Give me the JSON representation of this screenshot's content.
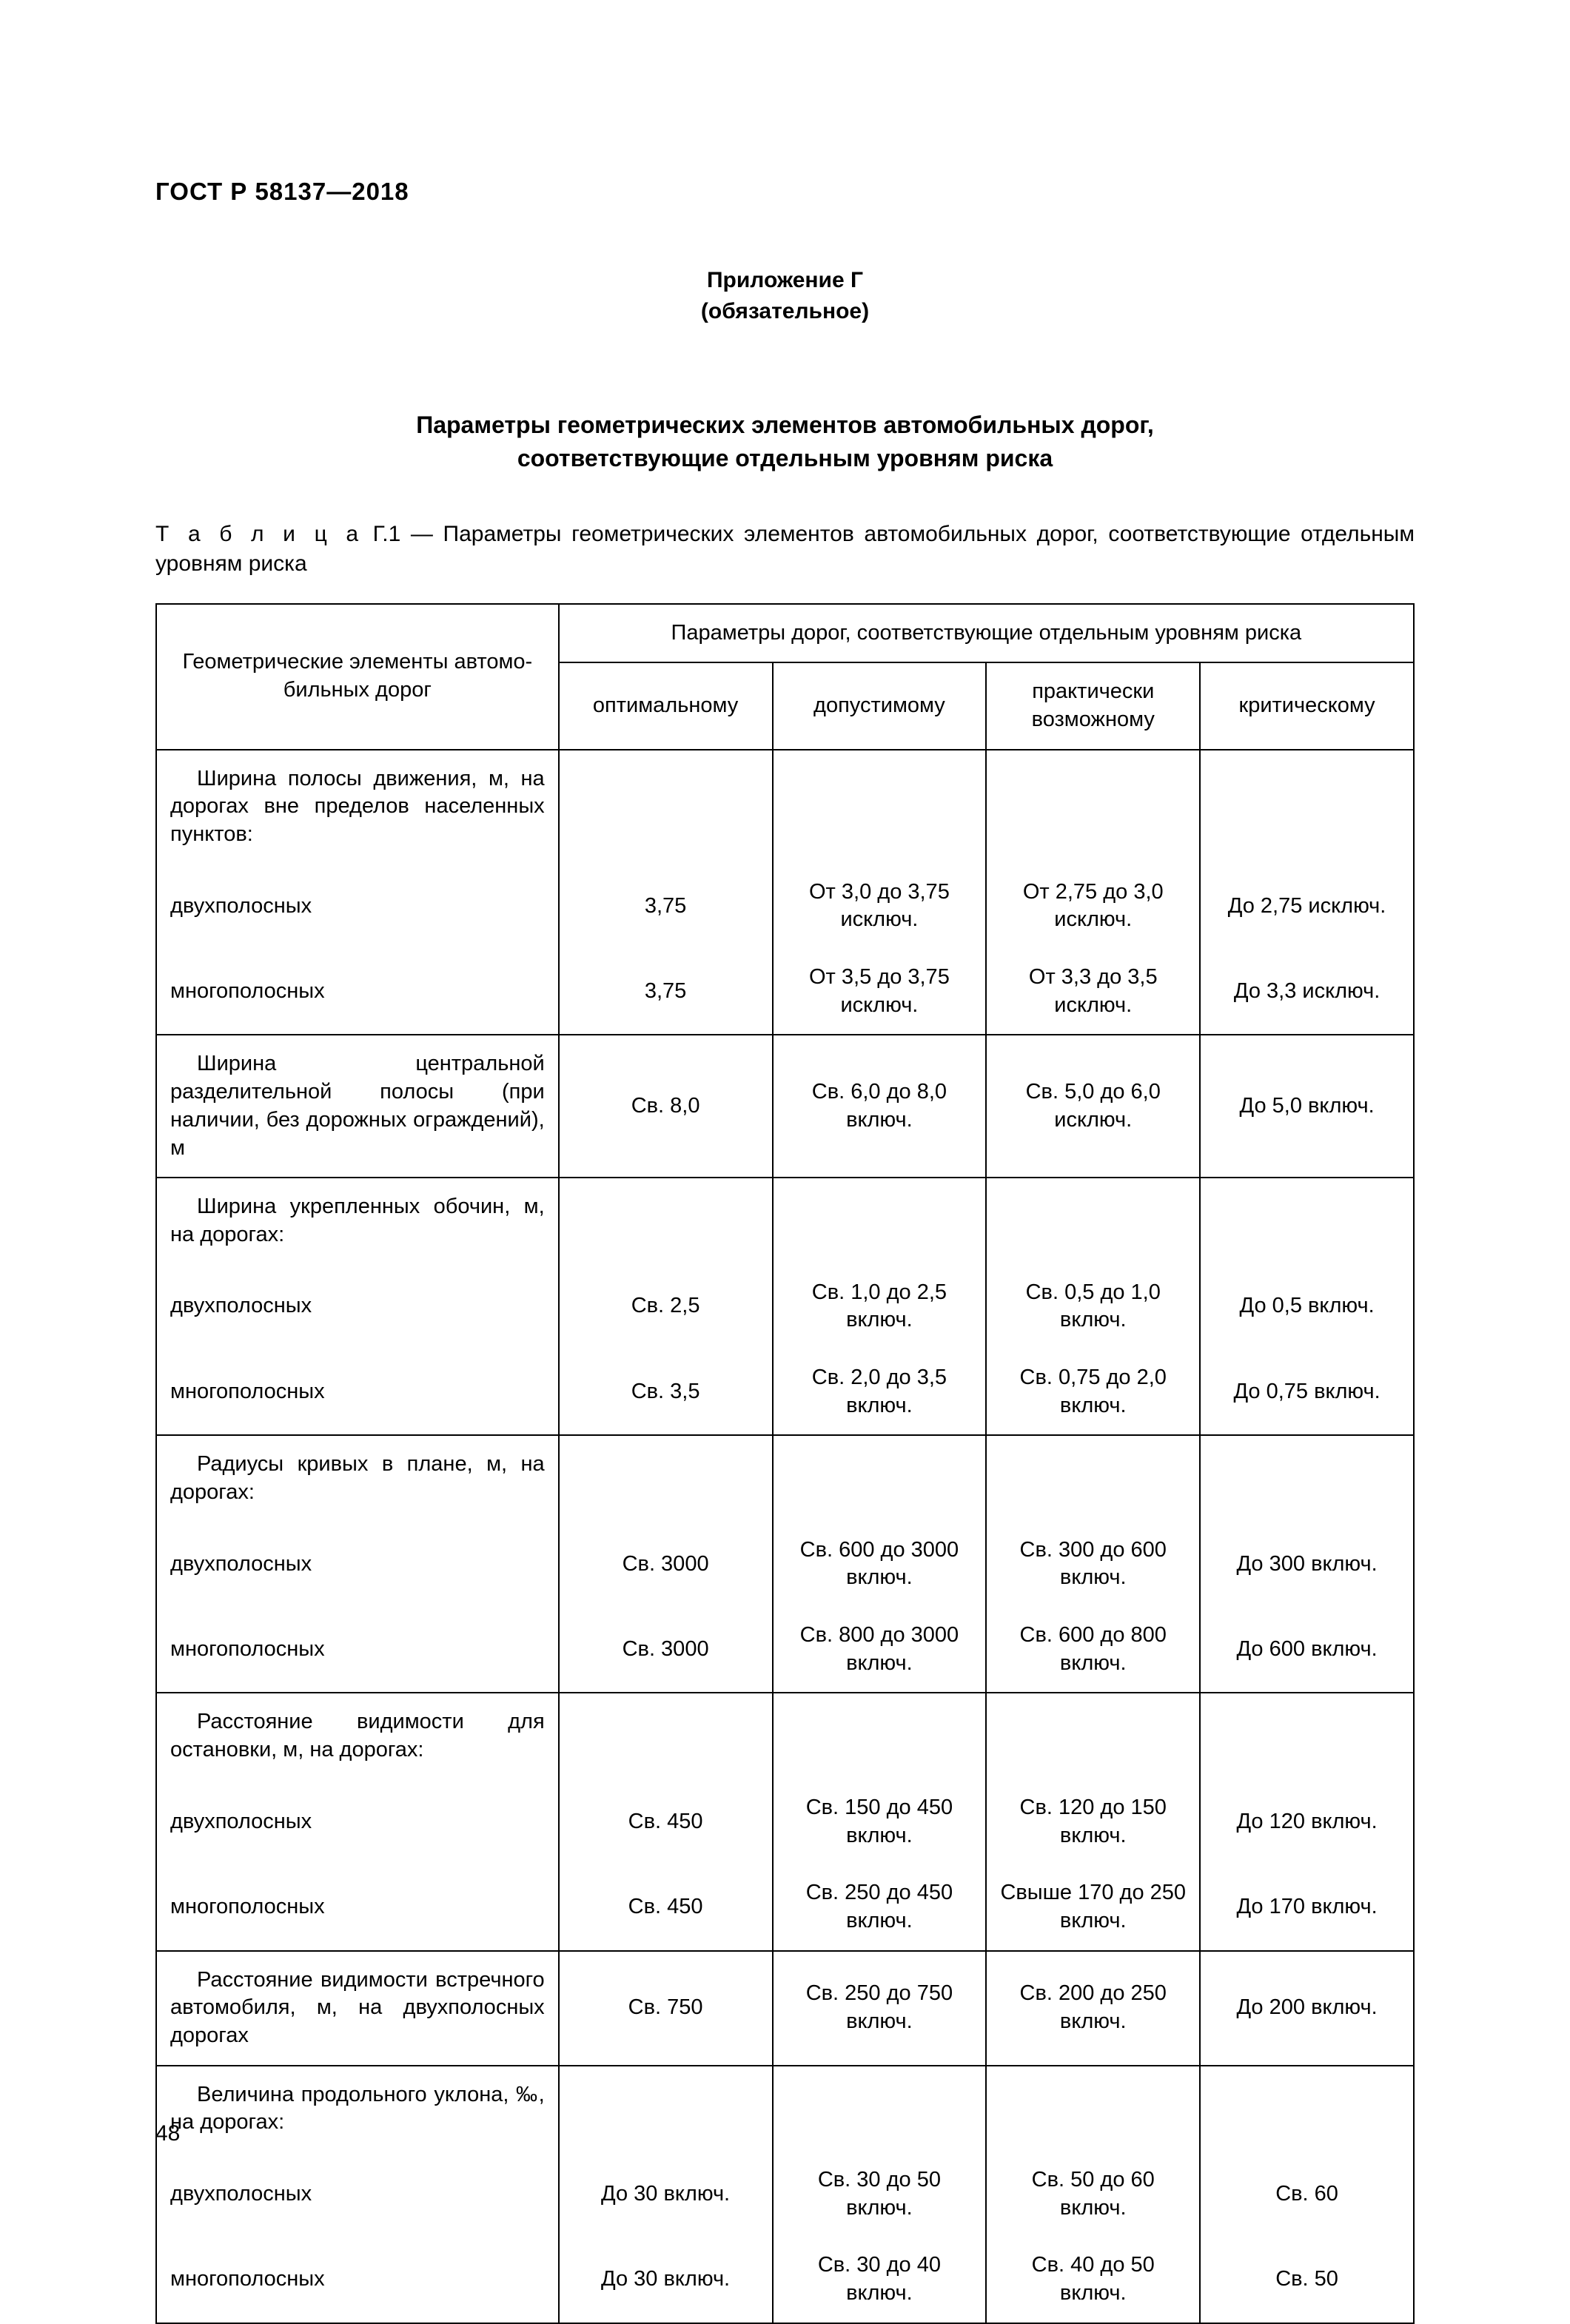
{
  "doc_id": "ГОСТ Р 58137—2018",
  "appendix_title": "Приложение Г",
  "appendix_note": "(обязательное)",
  "title_line1": "Параметры геометрических элементов автомобильных дорог,",
  "title_line2": "соответствующие отдельным уровням риска",
  "caption_prefix": "Т а б л и ц а",
  "caption_rest": "  Г.1 — Параметры геометрических элементов автомобильных дорог, соответствующие отдельным уровням риска",
  "header_left_line1": "Геометрические элементы автомо-",
  "header_left_line2": "бильных дорог",
  "header_top": "Параметры дорог, соответствующие отдельным уровням риска",
  "col_opt": "оптимальному",
  "col_adm": "допустимому",
  "col_prac_line1": "практически",
  "col_prac_line2": "возможному",
  "col_crit": "критическому",
  "groups": [
    {
      "cat": "Ширина полосы движения, м, на дорогах вне пределов населенных пунктов:",
      "rows": [
        {
          "label": "двухполосных",
          "opt": "3,75",
          "adm": "От 3,0 до 3,75 исключ.",
          "prac": "От 2,75 до 3,0 исключ.",
          "crit": "До 2,75 исключ."
        },
        {
          "label": "многополосных",
          "opt": "3,75",
          "adm": "От 3,5 до 3,75 исключ.",
          "prac": "От 3,3 до 3,5 исключ.",
          "crit": "До 3,3 исключ."
        }
      ]
    },
    {
      "cat": "Ширина центральной разделительной полосы (при наличии, без дорожных ограждений), м",
      "single": {
        "opt": "Св. 8,0",
        "adm": "Св. 6,0 до 8,0 включ.",
        "prac": "Св. 5,0 до 6,0 исключ.",
        "crit": "До 5,0 включ."
      }
    },
    {
      "cat": "Ширина укрепленных обочин, м, на дорогах:",
      "rows": [
        {
          "label": "двухполосных",
          "opt": "Св. 2,5",
          "adm": "Св. 1,0 до 2,5 включ.",
          "prac": "Св. 0,5 до 1,0 включ.",
          "crit": "До 0,5 включ."
        },
        {
          "label": "многополосных",
          "opt": "Св. 3,5",
          "adm": "Св. 2,0 до 3,5 включ.",
          "prac": "Св. 0,75 до 2,0 включ.",
          "crit": "До 0,75 включ."
        }
      ]
    },
    {
      "cat": "Радиусы кривых в плане, м, на дорогах:",
      "rows": [
        {
          "label": "двухполосных",
          "opt": "Св. 3000",
          "adm": "Св. 600 до 3000 включ.",
          "prac": "Св. 300 до 600 включ.",
          "crit": "До 300 включ."
        },
        {
          "label": "многополосных",
          "opt": "Св. 3000",
          "adm": "Св. 800 до 3000 включ.",
          "prac": "Св. 600 до 800 включ.",
          "crit": "До 600 включ."
        }
      ]
    },
    {
      "cat": "Расстояние видимости для остановки, м, на дорогах:",
      "rows": [
        {
          "label": "двухполосных",
          "opt": "Св. 450",
          "adm": "Св. 150 до 450 включ.",
          "prac": "Св. 120 до 150 включ.",
          "crit": "До 120 включ."
        },
        {
          "label": "многополосных",
          "opt": "Св. 450",
          "adm": "Св. 250 до 450 включ.",
          "prac": "Свыше 170 до 250 включ.",
          "crit": "До 170 включ."
        }
      ]
    },
    {
      "cat": "Расстояние видимости встречного автомобиля, м, на двухполосных дорогах",
      "single": {
        "opt": "Св. 750",
        "adm": "Св. 250 до 750 включ.",
        "prac": "Св. 200 до 250 включ.",
        "crit": "До 200 включ."
      }
    },
    {
      "cat": "Величина продольного уклона, ‰, на дорогах:",
      "rows": [
        {
          "label": "двухполосных",
          "opt": "До 30 включ.",
          "adm": "Св. 30 до 50 включ.",
          "prac": "Св. 50 до 60 включ.",
          "crit": "Св. 60"
        },
        {
          "label": "многополосных",
          "opt": "До 30 включ.",
          "adm": "Св. 30 до 40 включ.",
          "prac": "Св. 40 до 50 включ.",
          "crit": "Св. 50"
        }
      ]
    }
  ],
  "page_number": "48",
  "colors": {
    "text": "#000000",
    "background": "#ffffff",
    "border": "#000000"
  },
  "fonts": {
    "base_family": "Arial",
    "body_pt": 29,
    "heading_pt": 32,
    "docid_pt": 33
  }
}
